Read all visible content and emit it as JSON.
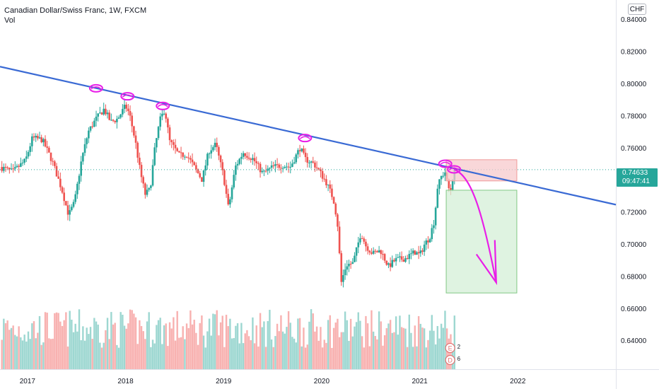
{
  "header": {
    "title": "Canadian Dollar/Swiss Franc, 1W, FXCM",
    "indicator": "Vol"
  },
  "currency_button": "CHF",
  "last_price": {
    "price": "0.74633",
    "countdown": "09:47:41"
  },
  "marks": [
    {
      "letter": "E",
      "count": "2"
    },
    {
      "letter": "D",
      "count": "6"
    }
  ],
  "colors": {
    "up": "#26a69a",
    "down": "#ef5350",
    "trendline": "#3a6ad4",
    "annotation": "#e91ee8",
    "stop_zone": "#f7c9cc",
    "target_zone": "#d4efd7"
  },
  "chart_data": {
    "type": "candlestick",
    "symbol": "Canadian Dollar/Swiss Franc",
    "interval": "1W",
    "source": "FXCM",
    "x_ticks": [
      "2017",
      "2018",
      "2019",
      "2020",
      "2021",
      "2022"
    ],
    "y_ticks": [
      "0.84000",
      "0.82000",
      "0.80000",
      "0.78000",
      "0.76000",
      "0.74000",
      "0.72000",
      "0.70000",
      "0.68000",
      "0.66000",
      "0.64000"
    ],
    "ylim": [
      0.622,
      0.852
    ],
    "xlim": [
      2016.72,
      2023.0
    ],
    "last_price": 0.74633,
    "price_path": [
      [
        2016.72,
        0.748
      ],
      [
        2016.85,
        0.745
      ],
      [
        2016.98,
        0.752
      ],
      [
        2017.05,
        0.766
      ],
      [
        2017.15,
        0.765
      ],
      [
        2017.25,
        0.752
      ],
      [
        2017.35,
        0.734
      ],
      [
        2017.42,
        0.718
      ],
      [
        2017.48,
        0.726
      ],
      [
        2017.55,
        0.752
      ],
      [
        2017.62,
        0.77
      ],
      [
        2017.7,
        0.778
      ],
      [
        2017.78,
        0.784
      ],
      [
        2017.85,
        0.776
      ],
      [
        2017.92,
        0.778
      ],
      [
        2018.0,
        0.786
      ],
      [
        2018.04,
        0.781
      ],
      [
        2018.1,
        0.764
      ],
      [
        2018.15,
        0.745
      ],
      [
        2018.2,
        0.731
      ],
      [
        2018.25,
        0.734
      ],
      [
        2018.3,
        0.76
      ],
      [
        2018.35,
        0.777
      ],
      [
        2018.4,
        0.784
      ],
      [
        2018.45,
        0.764
      ],
      [
        2018.55,
        0.755
      ],
      [
        2018.62,
        0.756
      ],
      [
        2018.7,
        0.748
      ],
      [
        2018.78,
        0.74
      ],
      [
        2018.85,
        0.758
      ],
      [
        2018.92,
        0.762
      ],
      [
        2019.0,
        0.742
      ],
      [
        2019.05,
        0.722
      ],
      [
        2019.12,
        0.748
      ],
      [
        2019.2,
        0.757
      ],
      [
        2019.3,
        0.753
      ],
      [
        2019.4,
        0.744
      ],
      [
        2019.5,
        0.748
      ],
      [
        2019.6,
        0.749
      ],
      [
        2019.68,
        0.748
      ],
      [
        2019.78,
        0.76
      ],
      [
        2019.83,
        0.753
      ],
      [
        2019.92,
        0.75
      ],
      [
        2019.98,
        0.745
      ],
      [
        2020.05,
        0.738
      ],
      [
        2020.12,
        0.728
      ],
      [
        2020.16,
        0.714
      ],
      [
        2020.2,
        0.676
      ],
      [
        2020.25,
        0.687
      ],
      [
        2020.32,
        0.688
      ],
      [
        2020.4,
        0.707
      ],
      [
        2020.45,
        0.699
      ],
      [
        2020.52,
        0.694
      ],
      [
        2020.6,
        0.696
      ],
      [
        2020.68,
        0.686
      ],
      [
        2020.75,
        0.69
      ],
      [
        2020.85,
        0.691
      ],
      [
        2020.95,
        0.695
      ],
      [
        2021.0,
        0.693
      ],
      [
        2021.05,
        0.7
      ],
      [
        2021.1,
        0.704
      ],
      [
        2021.15,
        0.715
      ],
      [
        2021.18,
        0.735
      ],
      [
        2021.22,
        0.742
      ],
      [
        2021.26,
        0.745
      ],
      [
        2021.28,
        0.738
      ],
      [
        2021.31,
        0.732
      ],
      [
        2021.34,
        0.743
      ],
      [
        2021.37,
        0.7463
      ]
    ],
    "volume": "bars shown along bottom of chart (values not printed)",
    "annotations": {
      "trendline": {
        "from": [
          2016.72,
          0.8105
        ],
        "to": [
          2023.0,
          0.7245
        ]
      },
      "stop_box": {
        "x": [
          2021.27,
          2021.99
        ],
        "y": [
          0.7393,
          0.7525
        ]
      },
      "target_box": {
        "x": [
          2021.27,
          2021.99
        ],
        "y": [
          0.6695,
          0.7335
        ]
      },
      "touch_marks": [
        [
          2017.7,
          0.797
        ],
        [
          2018.02,
          0.792
        ],
        [
          2018.38,
          0.786
        ],
        [
          2019.83,
          0.766
        ],
        [
          2021.26,
          0.75
        ],
        [
          2021.35,
          0.7465
        ]
      ]
    }
  }
}
